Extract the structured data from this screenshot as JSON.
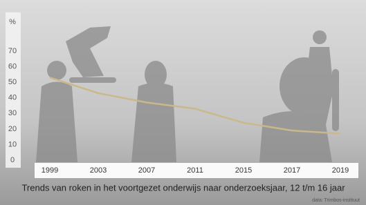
{
  "chart_data": {
    "type": "line",
    "title": "Trends van roken in het voortgezet onderwijs naar onderzoeksjaar, 12 t/m 16 jaar",
    "source": "data: Trimbos-instituut",
    "y_label": "%",
    "categories": [
      "1999",
      "2003",
      "2007",
      "2011",
      "2015",
      "2017",
      "2019"
    ],
    "values": [
      53,
      43,
      37,
      33,
      24,
      19,
      17
    ],
    "color": "#c9b98a",
    "ylim": [
      0,
      70
    ],
    "yticks": [
      0,
      10,
      20,
      30,
      40,
      50,
      60,
      70
    ]
  }
}
